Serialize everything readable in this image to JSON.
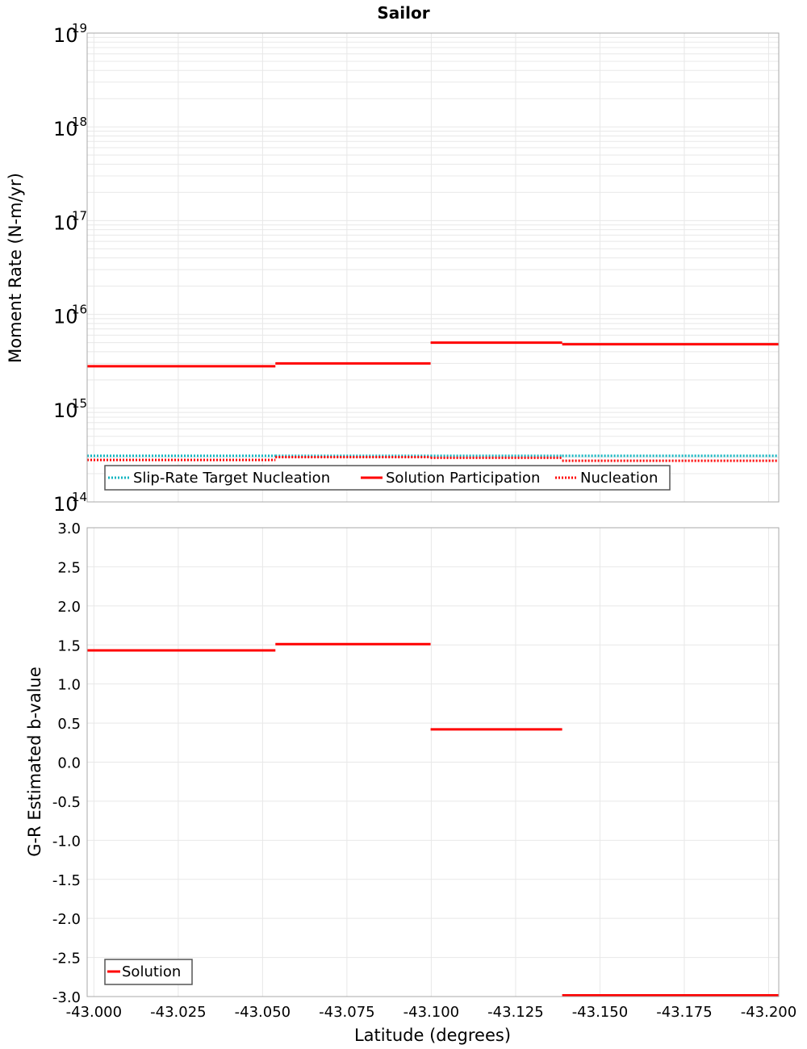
{
  "title": "Sailor",
  "colors": {
    "solution": "#ff0000",
    "target": "#10b4c0",
    "grid": "#e8e8e8",
    "axis": "#a8a8a8",
    "legend_border": "#555555"
  },
  "chart_data": [
    {
      "type": "line",
      "subtype": "step",
      "title": "Sailor",
      "xlabel": "Latitude (degrees)",
      "ylabel": "Moment Rate (N-m/yr)",
      "yscale": "log",
      "ylim": [
        100000000000000.0,
        1e+19
      ],
      "xlim": [
        -42.998,
        -43.203
      ],
      "y_tick_labels": [
        "10^19",
        "10^18",
        "10^17",
        "10^16",
        "10^15",
        "10^14"
      ],
      "grid": true,
      "legend_position": "lower-left",
      "x_segments": [
        [
          -42.998,
          -43.0538
        ],
        [
          -43.0538,
          -43.0998
        ],
        [
          -43.0998,
          -43.1388
        ],
        [
          -43.1388,
          -43.203
        ]
      ],
      "series": [
        {
          "name": "Slip-Rate Target Nucleation",
          "style": "dotted",
          "color": "#10b4c0",
          "values": [
            310000000000000.0,
            310000000000000.0,
            310000000000000.0,
            310000000000000.0
          ]
        },
        {
          "name": "Solution Participation",
          "style": "solid",
          "color": "#ff0000",
          "values": [
            2800000000000000.0,
            3000000000000000.0,
            5000000000000000.0,
            4800000000000000.0
          ]
        },
        {
          "name": "Nucleation",
          "style": "dotted",
          "color": "#ff0000",
          "values": [
            280000000000000.0,
            300000000000000.0,
            295000000000000.0,
            275000000000000.0
          ]
        }
      ]
    },
    {
      "type": "line",
      "subtype": "step",
      "xlabel": "Latitude (degrees)",
      "ylabel": "G-R Estimated b-value",
      "ylim": [
        -3.0,
        3.0
      ],
      "xlim": [
        -42.998,
        -43.203
      ],
      "x_ticks": [
        "-43.000",
        "-43.025",
        "-43.050",
        "-43.075",
        "-43.100",
        "-43.125",
        "-43.150",
        "-43.175",
        "-43.200"
      ],
      "y_ticks": [
        "3.0",
        "2.5",
        "2.0",
        "1.5",
        "1.0",
        "0.5",
        "0.0",
        "-0.5",
        "-1.0",
        "-1.5",
        "-2.0",
        "-2.5",
        "-3.0"
      ],
      "grid": true,
      "legend_position": "lower-left",
      "x_segments": [
        [
          -42.998,
          -43.0538
        ],
        [
          -43.0538,
          -43.0998
        ],
        [
          -43.0998,
          -43.1388
        ],
        [
          -43.1388,
          -43.203
        ]
      ],
      "series": [
        {
          "name": "Solution",
          "style": "solid",
          "color": "#ff0000",
          "values": [
            1.43,
            1.51,
            0.42,
            -3.0
          ]
        }
      ]
    }
  ],
  "top_panel": {
    "ylabel": "Moment Rate (N-m/yr)",
    "y_ticks": [
      {
        "base": "10",
        "exp": "19"
      },
      {
        "base": "10",
        "exp": "18"
      },
      {
        "base": "10",
        "exp": "17"
      },
      {
        "base": "10",
        "exp": "16"
      },
      {
        "base": "10",
        "exp": "15"
      },
      {
        "base": "10",
        "exp": "14"
      }
    ],
    "legend": [
      "Slip-Rate Target Nucleation",
      "Solution Participation",
      "Nucleation"
    ]
  },
  "bottom_panel": {
    "ylabel": "G-R Estimated b-value",
    "xlabel": "Latitude (degrees)",
    "legend": [
      "Solution"
    ]
  }
}
